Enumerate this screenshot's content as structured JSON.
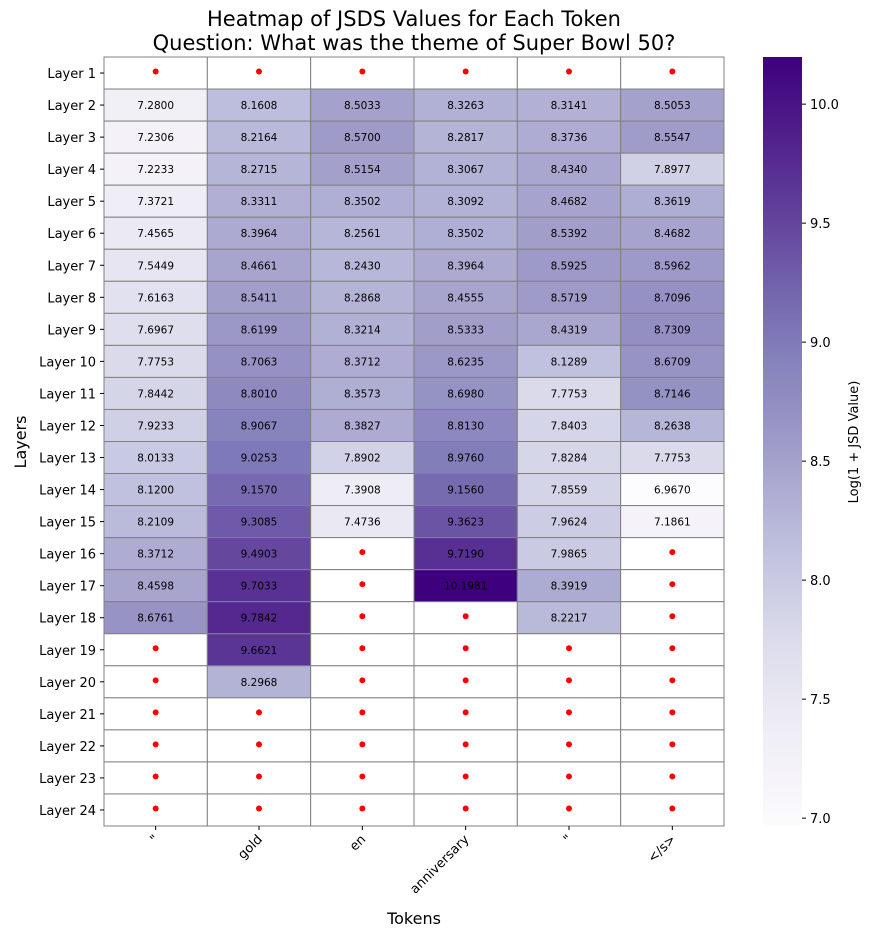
{
  "chart_data": {
    "type": "heatmap",
    "title": [
      "Heatmap of JSDS Values for Each Token",
      "Question: What was the theme of Super Bowl 50?"
    ],
    "xlabel": "Tokens",
    "ylabel": "Layers",
    "colorbar_label": "Log(1 + JSD Value)",
    "colormap": "Purples",
    "colorbar_range": [
      6.967,
      10.1981
    ],
    "colorbar_ticks": [
      7.0,
      7.5,
      8.0,
      8.5,
      9.0,
      9.5,
      10.0
    ],
    "colorbar_tick_labels": [
      "7.0",
      "7.5",
      "8.0",
      "8.5",
      "9.0",
      "9.5",
      "10.0"
    ],
    "missing_marker": "red-dot",
    "missing_color": "#ff0000",
    "x_categories": [
      "\"",
      "gold",
      "en",
      "anniversary",
      "\"",
      "</s>"
    ],
    "y_categories": [
      "Layer 1",
      "Layer 2",
      "Layer 3",
      "Layer 4",
      "Layer 5",
      "Layer 6",
      "Layer 7",
      "Layer 8",
      "Layer 9",
      "Layer 10",
      "Layer 11",
      "Layer 12",
      "Layer 13",
      "Layer 14",
      "Layer 15",
      "Layer 16",
      "Layer 17",
      "Layer 18",
      "Layer 19",
      "Layer 20",
      "Layer 21",
      "Layer 22",
      "Layer 23",
      "Layer 24"
    ],
    "values": [
      [
        null,
        null,
        null,
        null,
        null,
        null
      ],
      [
        7.28,
        8.1608,
        8.5033,
        8.3263,
        8.3141,
        8.5053
      ],
      [
        7.2306,
        8.2164,
        8.57,
        8.2817,
        8.3736,
        8.5547
      ],
      [
        7.2233,
        8.2715,
        8.5154,
        8.3067,
        8.434,
        7.8977
      ],
      [
        7.3721,
        8.3311,
        8.3502,
        8.3092,
        8.4682,
        8.3619
      ],
      [
        7.4565,
        8.3964,
        8.2561,
        8.3502,
        8.5392,
        8.4682
      ],
      [
        7.5449,
        8.4661,
        8.243,
        8.3964,
        8.5925,
        8.5962
      ],
      [
        7.6163,
        8.5411,
        8.2868,
        8.4555,
        8.5719,
        8.7096
      ],
      [
        7.6967,
        8.6199,
        8.3214,
        8.5333,
        8.4319,
        8.7309
      ],
      [
        7.7753,
        8.7063,
        8.3712,
        8.6235,
        8.1289,
        8.6709
      ],
      [
        7.8442,
        8.801,
        8.3573,
        8.698,
        7.7753,
        8.7146
      ],
      [
        7.9233,
        8.9067,
        8.3827,
        8.813,
        7.8403,
        8.2638
      ],
      [
        8.0133,
        9.0253,
        7.8902,
        8.976,
        7.8284,
        7.7753
      ],
      [
        8.12,
        9.157,
        7.3908,
        9.156,
        7.8559,
        6.967
      ],
      [
        8.2109,
        9.3085,
        7.4736,
        9.3623,
        7.9624,
        7.1861
      ],
      [
        8.3712,
        9.4903,
        null,
        9.719,
        7.9865,
        null
      ],
      [
        8.4598,
        9.7033,
        null,
        10.1981,
        8.3919,
        null
      ],
      [
        8.6761,
        9.7842,
        null,
        null,
        8.2217,
        null
      ],
      [
        null,
        9.6621,
        null,
        null,
        null,
        null
      ],
      [
        null,
        8.2968,
        null,
        null,
        null,
        null
      ],
      [
        null,
        null,
        null,
        null,
        null,
        null
      ],
      [
        null,
        null,
        null,
        null,
        null,
        null
      ],
      [
        null,
        null,
        null,
        null,
        null,
        null
      ],
      [
        null,
        null,
        null,
        null,
        null,
        null
      ]
    ]
  }
}
